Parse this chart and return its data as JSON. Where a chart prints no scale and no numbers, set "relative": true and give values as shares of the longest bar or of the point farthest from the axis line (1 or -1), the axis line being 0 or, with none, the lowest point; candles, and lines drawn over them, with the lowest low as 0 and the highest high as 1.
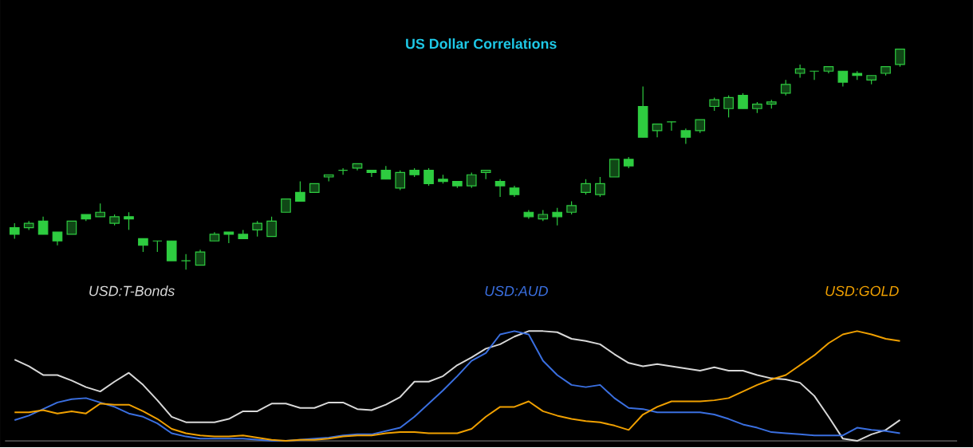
{
  "chart_data": [
    {
      "type": "candlestick",
      "title": "US Dollar Correlations",
      "relative": true,
      "color": "#2ecc40",
      "categories": [
        null,
        null,
        null,
        null,
        null,
        null,
        null,
        null,
        null,
        null,
        null,
        null,
        null,
        null,
        null,
        null,
        null,
        null,
        null,
        null,
        null,
        null,
        null,
        null,
        null,
        null,
        null,
        null,
        null,
        null,
        null,
        null,
        null,
        null,
        null,
        null,
        null,
        null,
        null,
        null,
        null,
        null,
        null,
        null,
        null,
        null,
        null,
        null,
        null,
        null,
        null,
        null,
        null,
        null,
        null,
        null,
        null,
        null,
        null,
        null,
        null,
        null,
        null
      ],
      "ohlc": [
        [
          0.19,
          0.21,
          0.14,
          0.16
        ],
        [
          0.19,
          0.22,
          0.18,
          0.21
        ],
        [
          0.22,
          0.24,
          0.16,
          0.16
        ],
        [
          0.17,
          0.17,
          0.11,
          0.13
        ],
        [
          0.16,
          0.22,
          0.16,
          0.22
        ],
        [
          0.25,
          0.25,
          0.22,
          0.23
        ],
        [
          0.24,
          0.3,
          0.24,
          0.26
        ],
        [
          0.21,
          0.25,
          0.2,
          0.24
        ],
        [
          0.24,
          0.26,
          0.18,
          0.23
        ],
        [
          0.14,
          0.14,
          0.08,
          0.11
        ],
        [
          0.13,
          0.13,
          0.08,
          0.13
        ],
        [
          0.13,
          0.13,
          0.04,
          0.04
        ],
        [
          0.04,
          0.07,
          0,
          0.04
        ],
        [
          0.02,
          0.09,
          0.02,
          0.08
        ],
        [
          0.13,
          0.17,
          0.13,
          0.16
        ],
        [
          0.17,
          0.17,
          0.12,
          0.16
        ],
        [
          0.16,
          0.18,
          0.14,
          0.14
        ],
        [
          0.18,
          0.22,
          0.15,
          0.21
        ],
        [
          0.15,
          0.24,
          0.15,
          0.22
        ],
        [
          0.26,
          0.32,
          0.26,
          0.32
        ],
        [
          0.35,
          0.4,
          0.31,
          0.31
        ],
        [
          0.35,
          0.39,
          0.35,
          0.39
        ],
        [
          0.42,
          0.43,
          0.4,
          0.43
        ],
        [
          0.45,
          0.46,
          0.43,
          0.45
        ],
        [
          0.46,
          0.48,
          0.45,
          0.48
        ],
        [
          0.45,
          0.45,
          0.42,
          0.44
        ],
        [
          0.45,
          0.47,
          0.41,
          0.41
        ],
        [
          0.37,
          0.45,
          0.36,
          0.44
        ],
        [
          0.45,
          0.46,
          0.42,
          0.43
        ],
        [
          0.45,
          0.46,
          0.38,
          0.39
        ],
        [
          0.41,
          0.43,
          0.39,
          0.4
        ],
        [
          0.4,
          0.4,
          0.37,
          0.38
        ],
        [
          0.38,
          0.44,
          0.37,
          0.43
        ],
        [
          0.44,
          0.45,
          0.41,
          0.45
        ],
        [
          0.4,
          0.41,
          0.33,
          0.38
        ],
        [
          0.37,
          0.38,
          0.33,
          0.34
        ],
        [
          0.26,
          0.27,
          0.23,
          0.24
        ],
        [
          0.23,
          0.27,
          0.22,
          0.25
        ],
        [
          0.26,
          0.28,
          0.2,
          0.24
        ],
        [
          0.26,
          0.31,
          0.25,
          0.29
        ],
        [
          0.35,
          0.41,
          0.34,
          0.39
        ],
        [
          0.34,
          0.42,
          0.33,
          0.39
        ],
        [
          0.42,
          0.5,
          0.42,
          0.5
        ],
        [
          0.5,
          0.51,
          0.46,
          0.47
        ],
        [
          0.74,
          0.83,
          0.6,
          0.6
        ],
        [
          0.63,
          0.66,
          0.6,
          0.66
        ],
        [
          0.67,
          0.67,
          0.63,
          0.67
        ],
        [
          0.63,
          0.64,
          0.57,
          0.6
        ],
        [
          0.63,
          0.68,
          0.62,
          0.68
        ],
        [
          0.74,
          0.78,
          0.72,
          0.77
        ],
        [
          0.73,
          0.79,
          0.69,
          0.78
        ],
        [
          0.79,
          0.8,
          0.73,
          0.73
        ],
        [
          0.73,
          0.76,
          0.71,
          0.75
        ],
        [
          0.75,
          0.77,
          0.73,
          0.76
        ],
        [
          0.8,
          0.86,
          0.79,
          0.84
        ],
        [
          0.89,
          0.93,
          0.87,
          0.91
        ],
        [
          0.9,
          0.9,
          0.86,
          0.9
        ],
        [
          0.9,
          0.92,
          0.89,
          0.92
        ],
        [
          0.9,
          0.9,
          0.83,
          0.85
        ],
        [
          0.89,
          0.9,
          0.86,
          0.88
        ],
        [
          0.86,
          0.88,
          0.84,
          0.88
        ],
        [
          0.89,
          0.92,
          0.88,
          0.92
        ],
        [
          0.93,
          1.0,
          0.92,
          1.0
        ]
      ]
    },
    {
      "type": "line",
      "relative": true,
      "marker": "none",
      "categories": [
        null,
        null,
        null,
        null,
        null,
        null,
        null,
        null,
        null,
        null,
        null,
        null,
        null,
        null,
        null,
        null,
        null,
        null,
        null,
        null,
        null,
        null,
        null,
        null,
        null,
        null,
        null,
        null,
        null,
        null,
        null,
        null,
        null,
        null,
        null,
        null,
        null,
        null,
        null,
        null,
        null,
        null,
        null,
        null,
        null,
        null,
        null,
        null,
        null,
        null,
        null,
        null,
        null,
        null,
        null,
        null,
        null,
        null,
        null,
        null,
        null,
        null,
        null
      ],
      "series": [
        {
          "name": "USD:T-Bonds",
          "color": "#d8d8d8",
          "values": [
            0.74,
            0.68,
            0.6,
            0.6,
            0.55,
            0.49,
            0.45,
            0.54,
            0.62,
            0.51,
            0.37,
            0.22,
            0.17,
            0.17,
            0.17,
            0.2,
            0.27,
            0.27,
            0.34,
            0.34,
            0.3,
            0.3,
            0.35,
            0.35,
            0.29,
            0.28,
            0.33,
            0.4,
            0.54,
            0.54,
            0.59,
            0.69,
            0.76,
            0.84,
            0.88,
            0.95,
            1.0,
            1.0,
            0.99,
            0.93,
            0.91,
            0.88,
            0.79,
            0.71,
            0.68,
            0.7,
            0.68,
            0.66,
            0.64,
            0.67,
            0.64,
            0.64,
            0.6,
            0.57,
            0.56,
            0.53,
            0.41,
            0.22,
            0.02,
            0,
            0.06,
            0.1,
            0.19
          ]
        },
        {
          "name": "USD:AUD",
          "color": "#3a6fe0",
          "values": [
            0.19,
            0.23,
            0.29,
            0.35,
            0.38,
            0.39,
            0.35,
            0.31,
            0.25,
            0.22,
            0.16,
            0.07,
            0.04,
            0.02,
            0.02,
            0.02,
            0.02,
            0.01,
            0,
            0,
            0.01,
            0.02,
            0.03,
            0.05,
            0.06,
            0.06,
            0.09,
            0.12,
            0.22,
            0.34,
            0.46,
            0.59,
            0.73,
            0.8,
            0.97,
            1.0,
            0.97,
            0.73,
            0.6,
            0.51,
            0.49,
            0.51,
            0.39,
            0.3,
            0.29,
            0.26,
            0.26,
            0.26,
            0.26,
            0.24,
            0.2,
            0.15,
            0.12,
            0.08,
            0.07,
            0.06,
            0.05,
            0.05,
            0.05,
            0.12,
            0.1,
            0.09,
            0.07
          ]
        },
        {
          "name": "USD:GOLD",
          "color": "#f0a000",
          "values": [
            0.26,
            0.26,
            0.28,
            0.25,
            0.27,
            0.25,
            0.34,
            0.33,
            0.33,
            0.27,
            0.2,
            0.11,
            0.07,
            0.05,
            0.04,
            0.04,
            0.05,
            0.03,
            0.01,
            0.0,
            0.01,
            0.01,
            0.02,
            0.04,
            0.05,
            0.05,
            0.07,
            0.08,
            0.08,
            0.07,
            0.07,
            0.07,
            0.11,
            0.22,
            0.31,
            0.31,
            0.36,
            0.27,
            0.23,
            0.2,
            0.18,
            0.17,
            0.14,
            0.1,
            0.24,
            0.31,
            0.36,
            0.36,
            0.36,
            0.37,
            0.39,
            0.45,
            0.51,
            0.56,
            0.6,
            0.69,
            0.78,
            0.89,
            0.97,
            1.0,
            0.97,
            0.93,
            0.91
          ]
        }
      ]
    }
  ]
}
